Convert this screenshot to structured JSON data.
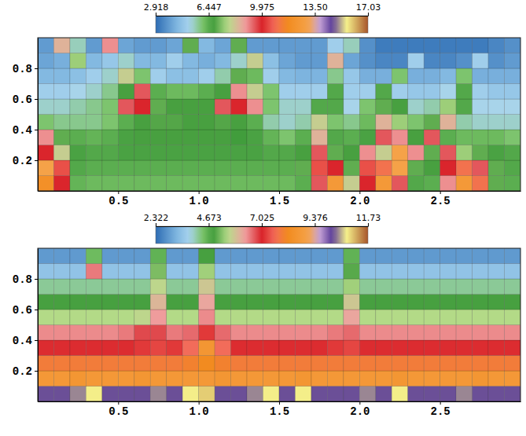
{
  "chart_data": [
    {
      "type": "heatmap",
      "xlim": [
        0,
        3
      ],
      "ylim": [
        0,
        1
      ],
      "xticks": [
        0.5,
        {
          "value": 1,
          "label": "1.0"
        },
        1.5,
        {
          "value": 2,
          "label": "2.0"
        },
        2.5
      ],
      "yticks": [
        0.2,
        0.4,
        0.6,
        0.8
      ],
      "colorbar": {
        "range": [
          2.918,
          17.03
        ],
        "ticks": [
          2.918,
          6.447,
          9.975,
          {
            "value": 13.5,
            "label": "13.50"
          },
          17.03
        ]
      },
      "cells": [
        [
          12,
          10,
          6.3,
          6.2,
          6.2,
          6.2,
          6.2,
          6.2,
          6.2,
          6.2,
          6.2,
          6.2,
          6.2,
          6.2,
          6.2,
          6.2,
          6.4,
          9.5,
          12.5,
          8,
          10,
          12.5,
          9.5,
          6.5,
          6.4,
          9,
          12.5,
          11,
          7,
          6.4
        ],
        [
          13,
          10.5,
          6.5,
          6.4,
          6.4,
          6.4,
          6.4,
          6.4,
          6.4,
          6.4,
          6.4,
          6.4,
          6.4,
          6.4,
          6.4,
          6.4,
          7,
          10.5,
          10,
          7,
          10.5,
          11,
          13,
          7,
          6.8,
          10,
          11,
          9.5,
          7,
          6.5
        ],
        [
          10,
          8,
          6.6,
          6.5,
          6.5,
          6.6,
          6.6,
          6.6,
          6.6,
          6.6,
          6.6,
          6.6,
          6.6,
          6.6,
          6.5,
          6.5,
          6.8,
          9.5,
          7,
          6.8,
          9,
          8,
          13,
          9,
          7,
          9.5,
          7.5,
          7,
          6.6,
          6.5
        ],
        [
          9,
          7,
          6.4,
          6.3,
          6.4,
          6.6,
          6.8,
          6.8,
          6.8,
          6.8,
          6.8,
          6.8,
          6.7,
          6.6,
          6.3,
          6.0,
          6.4,
          8.5,
          6.5,
          6.4,
          6.6,
          9.5,
          9,
          6.8,
          9.5,
          6.4,
          6.2,
          6.2,
          6.2,
          6.0
        ],
        [
          6,
          5.8,
          5.8,
          5.8,
          6.0,
          6.4,
          6.8,
          6.9,
          6.9,
          6.8,
          6.8,
          6.9,
          6.8,
          6.4,
          5.6,
          5.4,
          5.6,
          8,
          6,
          5.8,
          6.2,
          8.5,
          7.5,
          6,
          7,
          8.5,
          5.6,
          5.4,
          5.4,
          5.4
        ],
        [
          5.4,
          5.4,
          5.6,
          5.8,
          6.0,
          9.5,
          10,
          7,
          6.8,
          6.8,
          6.8,
          9.5,
          10,
          9,
          6.0,
          5.4,
          5.4,
          6.5,
          6.5,
          5.2,
          6,
          7,
          6.8,
          5.4,
          5.6,
          7.5,
          6.5,
          5.2,
          5.2,
          5.2
        ],
        [
          5.0,
          5.0,
          5.2,
          5.4,
          5.8,
          6.8,
          9.5,
          6.4,
          6.2,
          6.2,
          6.4,
          6.8,
          9,
          8,
          6,
          5.0,
          5.0,
          5.0,
          6.5,
          5,
          5,
          6.5,
          5,
          4.8,
          4.8,
          5.2,
          6.5,
          5,
          4.8,
          4.8
        ],
        [
          4.4,
          4.4,
          4.6,
          5,
          5.4,
          8,
          6,
          5,
          4.6,
          4.6,
          5,
          5.6,
          7,
          6.2,
          5,
          4.4,
          4.3,
          4.3,
          5.8,
          4.8,
          4.2,
          4.2,
          6,
          4.2,
          4.2,
          4.4,
          6,
          4.2,
          4.2,
          4.2
        ],
        [
          4.0,
          4.2,
          7.5,
          4.4,
          4.8,
          5.4,
          4.4,
          4.4,
          5,
          4.4,
          4.2,
          4.4,
          5.4,
          8,
          4.6,
          4.0,
          3.8,
          3.8,
          8.5,
          4.0,
          3.6,
          3.4,
          3.4,
          5,
          3.4,
          3.4,
          3.6,
          5,
          3.6,
          3.8
        ],
        [
          3.8,
          8.5,
          5.5,
          3.8,
          9,
          4,
          3.8,
          3.8,
          4.0,
          7,
          4.4,
          4.0,
          7,
          3.8,
          3.8,
          3.8,
          3.8,
          3.8,
          5,
          5.5,
          3.6,
          3.2,
          3.2,
          3.2,
          3.2,
          3.2,
          3.2,
          3.2,
          3.4,
          3.6
        ]
      ]
    },
    {
      "type": "heatmap",
      "xlim": [
        0,
        3
      ],
      "ylim": [
        0,
        1
      ],
      "xticks": [
        0.5,
        {
          "value": 1,
          "label": "1.0"
        },
        1.5,
        {
          "value": 2,
          "label": "2.0"
        },
        2.5
      ],
      "yticks": [
        0.2,
        0.4,
        0.6,
        0.8
      ],
      "colorbar": {
        "range": [
          2.322,
          11.73
        ],
        "ticks": [
          2.322,
          4.673,
          7.025,
          9.376,
          11.73
        ]
      },
      "cells": [
        [
          10.2,
          10.2,
          10.4,
          10.8,
          10.2,
          10.2,
          10.2,
          10.4,
          10.2,
          10.8,
          11,
          10.2,
          10.2,
          10.4,
          10.8,
          10.2,
          10.8,
          10.2,
          10.2,
          10.2,
          10.4,
          10.2,
          10.8,
          10.2,
          10.2,
          10.2,
          10.4,
          10.2,
          10.2,
          10.2
        ],
        [
          8.7,
          8.7,
          8.6,
          8.7,
          8.7,
          8.7,
          8.6,
          8.7,
          8.7,
          8.7,
          8.7,
          8.6,
          8.7,
          8.7,
          8.7,
          8.7,
          8.6,
          8.7,
          8.7,
          8.7,
          8.7,
          8.7,
          8.6,
          8.7,
          8.7,
          8.7,
          8.7,
          8.6,
          8.7,
          8.7
        ],
        [
          7.9,
          7.9,
          7.9,
          7.9,
          7.9,
          7.9,
          7.9,
          7.9,
          7.9,
          8.0,
          8.2,
          8.0,
          7.9,
          7.9,
          7.9,
          7.9,
          7.9,
          7.9,
          7.9,
          7.9,
          7.9,
          7.9,
          7.9,
          7.9,
          7.9,
          7.9,
          7.9,
          7.9,
          7.9,
          7.9
        ],
        [
          7.1,
          7.1,
          7.1,
          7.1,
          7.1,
          7.1,
          7.2,
          7.3,
          7.2,
          7.6,
          8.6,
          7.6,
          7.1,
          7.1,
          7.1,
          7.1,
          7.1,
          7.1,
          7.2,
          7.3,
          7.1,
          7.1,
          7.1,
          7.1,
          7.1,
          7.1,
          7.1,
          7.1,
          7.1,
          7.1
        ],
        [
          6.4,
          6.4,
          6.4,
          6.4,
          6.4,
          6.5,
          6.8,
          6.8,
          6.5,
          6.6,
          7.2,
          6.6,
          6.4,
          6.4,
          6.4,
          6.4,
          6.4,
          6.4,
          6.5,
          6.6,
          6.4,
          6.4,
          6.4,
          6.4,
          6.4,
          6.4,
          6.4,
          6.4,
          6.4,
          6.4
        ],
        [
          5.5,
          5.5,
          5.5,
          5.5,
          5.5,
          5.5,
          5.6,
          6.3,
          5.5,
          5.5,
          6.4,
          5.5,
          5.5,
          5.5,
          5.5,
          5.5,
          5.5,
          5.5,
          5.5,
          6.2,
          5.5,
          5.5,
          5.5,
          5.5,
          5.5,
          5.5,
          5.5,
          5.5,
          5.5,
          5.5
        ],
        [
          4.8,
          4.8,
          4.8,
          4.8,
          4.8,
          4.8,
          4.8,
          6.0,
          4.8,
          4.8,
          6.2,
          4.8,
          4.8,
          4.8,
          4.8,
          4.8,
          4.8,
          4.8,
          4.8,
          5.8,
          4.8,
          4.8,
          4.8,
          4.8,
          4.8,
          4.8,
          4.8,
          4.8,
          4.8,
          4.8
        ],
        [
          4.2,
          4.2,
          4.2,
          4.2,
          4.2,
          4.2,
          4.2,
          5.6,
          4.2,
          4.2,
          5.8,
          4.2,
          4.2,
          4.2,
          4.2,
          4.2,
          4.2,
          4.2,
          4.2,
          5.4,
          4.2,
          4.2,
          4.2,
          4.2,
          4.2,
          4.2,
          4.2,
          4.2,
          4.2,
          4.2
        ],
        [
          3.5,
          3.5,
          3.5,
          6.5,
          3.5,
          3.5,
          3.5,
          5.2,
          3.5,
          3.5,
          5.4,
          3.5,
          3.5,
          3.5,
          3.5,
          3.5,
          3.5,
          3.5,
          3.5,
          5.0,
          3.5,
          3.5,
          3.5,
          3.5,
          3.5,
          3.5,
          3.5,
          3.5,
          3.5,
          3.5
        ],
        [
          2.9,
          2.9,
          2.9,
          4.5,
          2.9,
          2.9,
          2.9,
          4.6,
          2.9,
          2.9,
          4.8,
          2.9,
          2.9,
          2.9,
          2.9,
          2.9,
          2.9,
          2.9,
          2.9,
          4.6,
          2.9,
          2.9,
          2.9,
          2.9,
          2.9,
          2.9,
          2.9,
          2.9,
          2.9,
          2.9
        ]
      ]
    }
  ]
}
